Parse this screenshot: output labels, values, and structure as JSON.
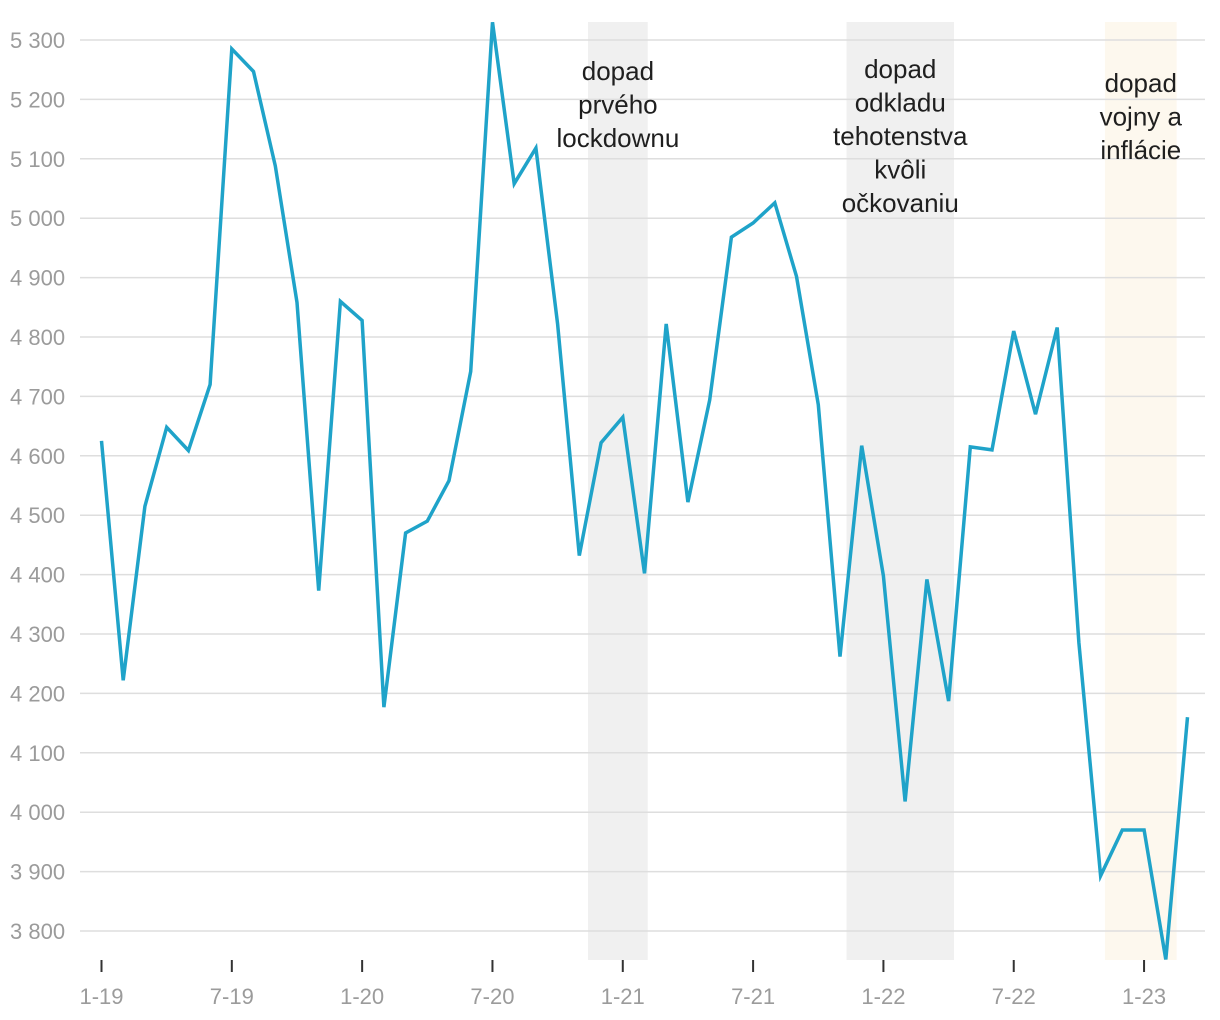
{
  "chart_data": {
    "type": "line",
    "title": "",
    "xlabel": "",
    "ylabel": "",
    "ylim": [
      3750,
      5330
    ],
    "y_ticks": [
      {
        "value": 3800,
        "label": "3 800"
      },
      {
        "value": 3900,
        "label": "3 900"
      },
      {
        "value": 4000,
        "label": "4 000"
      },
      {
        "value": 4100,
        "label": "4 100"
      },
      {
        "value": 4200,
        "label": "4 200"
      },
      {
        "value": 4300,
        "label": "4 300"
      },
      {
        "value": 4400,
        "label": "4 400"
      },
      {
        "value": 4500,
        "label": "4 500"
      },
      {
        "value": 4600,
        "label": "4 600"
      },
      {
        "value": 4700,
        "label": "4 700"
      },
      {
        "value": 4800,
        "label": "4 800"
      },
      {
        "value": 4900,
        "label": "4 900"
      },
      {
        "value": 5000,
        "label": "5 000"
      },
      {
        "value": 5100,
        "label": "5 100"
      },
      {
        "value": 5200,
        "label": "5 200"
      },
      {
        "value": 5300,
        "label": "5 300"
      }
    ],
    "x_ticks": [
      {
        "index": 0,
        "label": "1-19"
      },
      {
        "index": 6,
        "label": "7-19"
      },
      {
        "index": 12,
        "label": "1-20"
      },
      {
        "index": 18,
        "label": "7-20"
      },
      {
        "index": 24,
        "label": "1-21"
      },
      {
        "index": 30,
        "label": "7-21"
      },
      {
        "index": 36,
        "label": "1-22"
      },
      {
        "index": 42,
        "label": "7-22"
      },
      {
        "index": 48,
        "label": "1-23"
      }
    ],
    "series": [
      {
        "name": "",
        "color": "#1fa3c9",
        "values": [
          4625,
          4222,
          4515,
          4648,
          4609,
          4720,
          5285,
          5247,
          5088,
          4858,
          4373,
          4860,
          4828,
          4177,
          4470,
          4490,
          4558,
          4742,
          5330,
          5058,
          5118,
          4822,
          4432,
          4622,
          4665,
          4402,
          4822,
          4522,
          4694,
          4968,
          4992,
          5026,
          4902,
          4686,
          4262,
          4617,
          4398,
          4018,
          4392,
          4187,
          4615,
          4610,
          4810,
          4670,
          4816,
          4285,
          3893,
          3970,
          3970,
          3752,
          4160
        ]
      }
    ],
    "bands": [
      {
        "start": 22.4,
        "end": 25.15,
        "color": "#f0f0f0",
        "label_lines": [
          "dopad",
          "prvého",
          "lockdownu"
        ]
      },
      {
        "start": 34.3,
        "end": 39.25,
        "color": "#f0f0f0",
        "label_lines": [
          "dopad",
          "odkladu",
          "tehotenstva",
          "kvôli",
          "očkovaniu"
        ]
      },
      {
        "start": 46.2,
        "end": 49.5,
        "color": "#fdf8ee",
        "label_lines": [
          "dopad",
          "vojny a",
          "inflácie"
        ]
      }
    ],
    "grid": true,
    "legend": "none"
  }
}
